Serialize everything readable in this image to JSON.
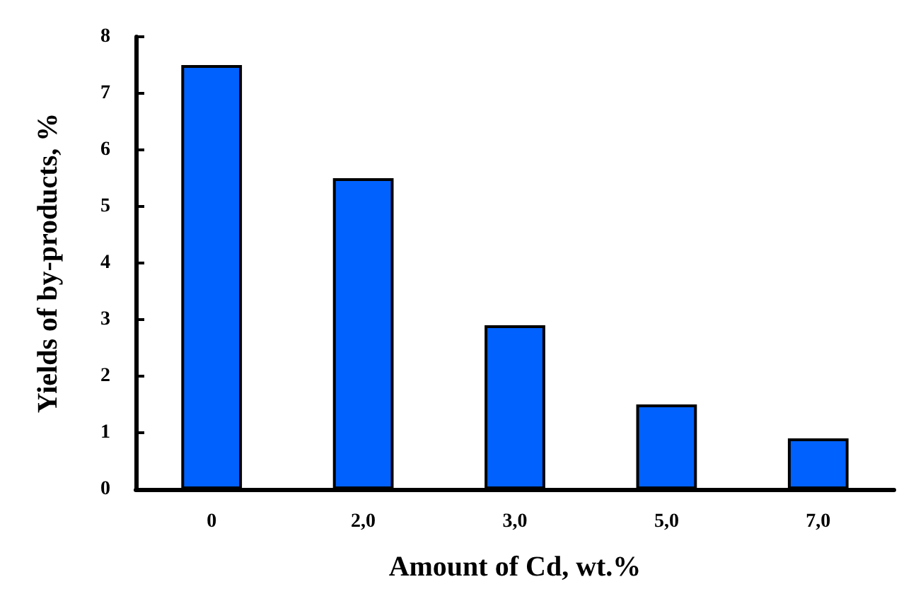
{
  "chart_data": {
    "type": "bar",
    "xlabel": "Amount of Cd, wt.%",
    "ylabel": "Yields of by-products, %",
    "categories": [
      "0",
      "2,0",
      "3,0",
      "5,0",
      "7,0"
    ],
    "values": [
      7.5,
      5.5,
      2.9,
      1.5,
      0.9
    ],
    "color": "#0061ff",
    "ylim": [
      0,
      8
    ],
    "yticks": [
      0,
      1,
      2,
      3,
      4,
      5,
      6,
      7,
      8
    ],
    "grid": false
  }
}
